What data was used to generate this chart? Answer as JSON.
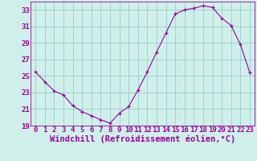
{
  "x": [
    0,
    1,
    2,
    3,
    4,
    5,
    6,
    7,
    8,
    9,
    10,
    11,
    12,
    13,
    14,
    15,
    16,
    17,
    18,
    19,
    20,
    21,
    22,
    23
  ],
  "y": [
    25.5,
    24.3,
    23.2,
    22.7,
    21.4,
    20.7,
    20.2,
    19.7,
    19.3,
    20.5,
    21.3,
    23.3,
    25.5,
    27.9,
    30.2,
    32.5,
    33.0,
    33.2,
    33.5,
    33.3,
    32.0,
    31.1,
    28.8,
    25.4
  ],
  "xlabel": "Windchill (Refroidissement éolien,°C)",
  "ylim": [
    19,
    34
  ],
  "xlim": [
    -0.5,
    23.5
  ],
  "yticks": [
    19,
    21,
    23,
    25,
    27,
    29,
    31,
    33
  ],
  "xticks": [
    0,
    1,
    2,
    3,
    4,
    5,
    6,
    7,
    8,
    9,
    10,
    11,
    12,
    13,
    14,
    15,
    16,
    17,
    18,
    19,
    20,
    21,
    22,
    23
  ],
  "line_color": "#990099",
  "marker": "P",
  "bg_color": "#cff0ea",
  "grid_color": "#99cccc",
  "tick_color": "#990099",
  "label_color": "#990099",
  "tick_fontsize": 6.5,
  "xlabel_fontsize": 7.5
}
